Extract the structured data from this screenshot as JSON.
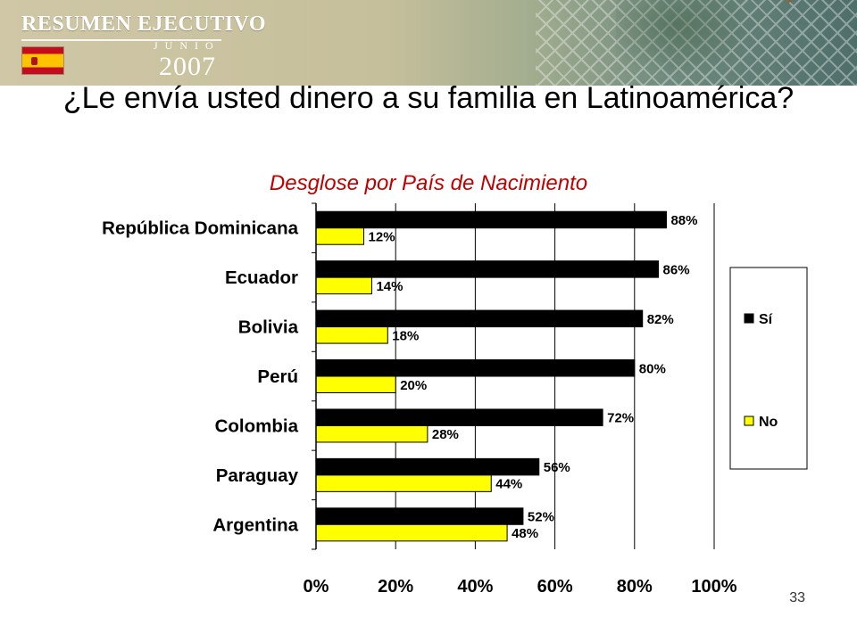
{
  "header": {
    "brand_title": "RESUMEN EJECUTIVO",
    "brand_month": "JUNIO",
    "brand_year": "2007",
    "flag_icon": "spain-flag-icon"
  },
  "title": "¿Le envía usted dinero a su familia en Latinoamérica?",
  "subtitle": "Desglose por País de Nacimiento",
  "page_number": "33",
  "chart_data": {
    "type": "bar",
    "orientation": "horizontal",
    "categories": [
      "República Dominicana",
      "Ecuador",
      "Bolivia",
      "Perú",
      "Colombia",
      "Paraguay",
      "Argentina"
    ],
    "series": [
      {
        "name": "Sí",
        "color": "#000000",
        "values": [
          88,
          86,
          82,
          80,
          72,
          56,
          52
        ]
      },
      {
        "name": "No",
        "color": "#ffff00",
        "values": [
          12,
          14,
          18,
          20,
          28,
          44,
          48
        ]
      }
    ],
    "xlim": [
      0,
      100
    ],
    "xticks": [
      "0%",
      "20%",
      "40%",
      "60%",
      "80%",
      "100%"
    ],
    "xtick_values": [
      0,
      20,
      40,
      60,
      80,
      100
    ],
    "value_suffix": "%",
    "grid": "vertical",
    "legend": "right"
  }
}
